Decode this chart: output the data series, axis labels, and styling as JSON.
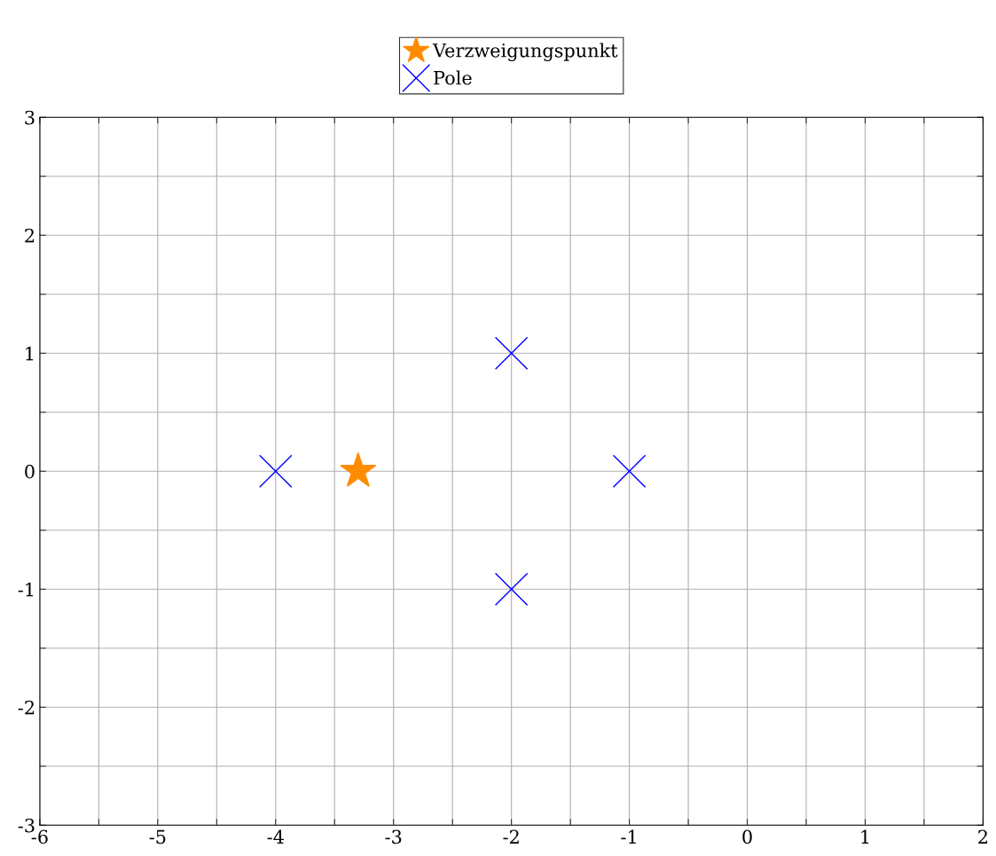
{
  "chart_data": {
    "type": "scatter",
    "series": [
      {
        "name": "Verzweigungspunkt",
        "color": "#ff8c00",
        "marker": "star",
        "x": [
          -3.3
        ],
        "values": [
          0
        ]
      },
      {
        "name": "Pole",
        "color": "#0000ff",
        "marker": "cross",
        "x": [
          -4,
          -2,
          -2,
          -1
        ],
        "values": [
          0,
          1,
          -1,
          0
        ]
      }
    ],
    "xlim": [
      -6,
      2
    ],
    "ylim": [
      -3,
      3
    ],
    "xticks": [
      -6,
      {
        "value": -5.5,
        "label": null
      },
      -5,
      {
        "value": -4.5,
        "label": null
      },
      -4,
      {
        "value": -3.5,
        "label": null
      },
      -3,
      {
        "value": -2.5,
        "label": null
      },
      -2,
      {
        "value": -1.5,
        "label": null
      },
      -1,
      {
        "value": -0.5,
        "label": null
      },
      0,
      {
        "value": 0.5,
        "label": null
      },
      1,
      {
        "value": 1.5,
        "label": null
      },
      2
    ],
    "yticks": [
      -3,
      {
        "value": -2.5,
        "label": null
      },
      -2,
      {
        "value": -1.5,
        "label": null
      },
      -1,
      {
        "value": -0.5,
        "label": null
      },
      0,
      {
        "value": 0.5,
        "label": null
      },
      1,
      {
        "value": 1.5,
        "label": null
      },
      2,
      {
        "value": 2.5,
        "label": null
      },
      3
    ],
    "grid": true,
    "legend": "top"
  }
}
